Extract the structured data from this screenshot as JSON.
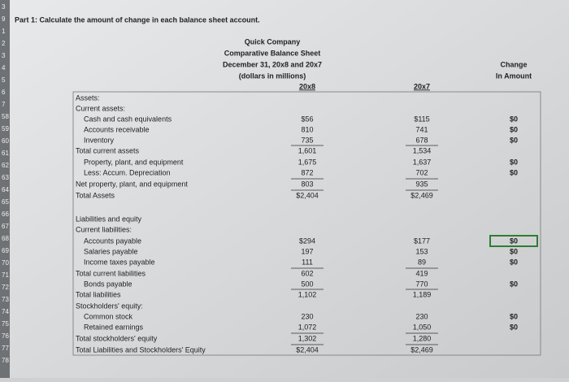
{
  "part_title": "Part 1: Calculate the amount of change in each balance sheet account.",
  "row_numbers": [
    "3",
    "9",
    "1",
    "2",
    "3",
    "4",
    "5",
    "6",
    "7",
    "58",
    "59",
    "60",
    "61",
    "62",
    "63",
    "64",
    "65",
    "66",
    "67",
    "68",
    "69",
    "70",
    "71",
    "72",
    "73",
    "74",
    "75",
    "76",
    "77",
    "78"
  ],
  "header": {
    "company": "Quick Company",
    "title": "Comparative Balance Sheet",
    "date": "December 31, 20x8 and 20x7",
    "units": "(dollars in millions)",
    "col_year1": "20x8",
    "col_year2": "20x7",
    "change_line1": "Change",
    "change_line2": "In Amount"
  },
  "rows": [
    {
      "label": "Assets:"
    },
    {
      "label": "Current assets:"
    },
    {
      "label": "Cash and cash equivalents",
      "y1": "$56",
      "y2": "$115",
      "change": "$0"
    },
    {
      "label": "Accounts receivable",
      "y1": "810",
      "y2": "741",
      "change": "$0"
    },
    {
      "label": "Inventory",
      "y1": "735",
      "y2": "678",
      "change": "$0"
    },
    {
      "label": "Total current assets",
      "y1": "1,601",
      "y2": "1,534"
    },
    {
      "label": "Property, plant, and equipment",
      "y1": "1,675",
      "y2": "1,637",
      "change": "$0"
    },
    {
      "label": "Less: Accum. Depreciation",
      "y1": "872",
      "y2": "702",
      "change": "$0"
    },
    {
      "label": "Net property, plant, and equipment",
      "y1": "803",
      "y2": "935"
    },
    {
      "label": "Total Assets",
      "y1": "$2,404",
      "y2": "$2,469"
    },
    {
      "label": "Liabilities and equity"
    },
    {
      "label": "Current liabilities:"
    },
    {
      "label": "Accounts payable",
      "y1": "$294",
      "y2": "$177",
      "change": "$0"
    },
    {
      "label": "Salaries payable",
      "y1": "197",
      "y2": "153",
      "change": "$0"
    },
    {
      "label": "Income taxes payable",
      "y1": "111",
      "y2": "89",
      "change": "$0"
    },
    {
      "label": "Total current liabilities",
      "y1": "602",
      "y2": "419"
    },
    {
      "label": "Bonds payable",
      "y1": "500",
      "y2": "770",
      "change": "$0"
    },
    {
      "label": "Total liabilities",
      "y1": "1,102",
      "y2": "1,189"
    },
    {
      "label": "Stockholders' equity:"
    },
    {
      "label": "Common stock",
      "y1": "230",
      "y2": "230",
      "change": "$0"
    },
    {
      "label": "Retained earnings",
      "y1": "1,072",
      "y2": "1,050",
      "change": "$0"
    },
    {
      "label": "Total stockholders' equity",
      "y1": "1,302",
      "y2": "1,280"
    },
    {
      "label": "Total Liabilities and Stockholders' Equity",
      "y1": "$2,404",
      "y2": "$2,469"
    }
  ]
}
